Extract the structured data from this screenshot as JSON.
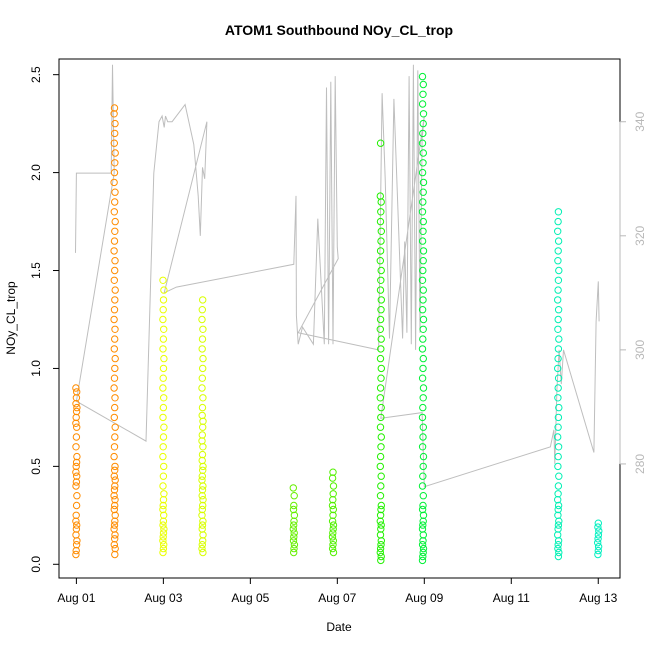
{
  "chart_data": {
    "type": "scatter",
    "title": "ATOM1 Southbound NOy_CL_trop",
    "xlabel": "Date",
    "ylabel": "NOy_CL_trop",
    "x_ticks": [
      "Aug 01",
      "Aug 03",
      "Aug 05",
      "Aug 07",
      "Aug 09",
      "Aug 11",
      "Aug 13"
    ],
    "x_tick_days": [
      1,
      3,
      5,
      7,
      9,
      11,
      13
    ],
    "xlim_days": [
      0.6,
      13.5
    ],
    "ylim": [
      -0.07,
      2.58
    ],
    "y_ticks": [
      "0.0",
      "0.5",
      "1.0",
      "1.5",
      "2.0",
      "2.5"
    ],
    "y_tick_values": [
      0,
      0.5,
      1.0,
      1.5,
      2.0,
      2.5
    ],
    "y2_ticks": [
      "280",
      "300",
      "320",
      "340"
    ],
    "y2_tick_values": [
      280,
      300,
      320,
      340
    ],
    "y2lim": [
      260,
      351
    ],
    "grid": false,
    "marker": "open circle",
    "colors": {
      "axis": "#000000",
      "right_axis": "#b8b8b8",
      "overlay_line": "#bebebe"
    },
    "series": [
      {
        "day": 1.0,
        "color": "#ff8c00",
        "values": [
          0.05,
          0.07,
          0.1,
          0.12,
          0.15,
          0.18,
          0.2,
          0.22,
          0.25,
          0.3,
          0.35,
          0.4,
          0.42,
          0.45,
          0.47,
          0.5,
          0.52,
          0.55,
          0.6,
          0.65,
          0.7,
          0.72,
          0.75,
          0.78,
          0.8,
          0.82,
          0.85,
          0.88,
          0.9
        ]
      },
      {
        "day": 1.88,
        "color": "#ff8c00",
        "values": [
          0.05,
          0.08,
          0.1,
          0.13,
          0.15,
          0.18,
          0.2,
          0.22,
          0.25,
          0.28,
          0.3,
          0.33,
          0.35,
          0.38,
          0.4,
          0.43,
          0.45,
          0.48,
          0.5,
          0.55,
          0.6,
          0.65,
          0.7,
          0.75,
          0.8,
          0.85,
          0.9,
          0.95,
          1.0,
          1.05,
          1.1,
          1.15,
          1.2,
          1.25,
          1.3,
          1.35,
          1.4,
          1.45,
          1.5,
          1.55,
          1.6,
          1.65,
          1.7,
          1.75,
          1.8,
          1.85,
          1.9,
          1.95,
          2.0,
          2.05,
          2.1,
          2.15,
          2.2,
          2.25,
          2.3,
          2.33
        ]
      },
      {
        "day": 3.0,
        "color": "#e9ff00",
        "values": [
          0.06,
          0.08,
          0.1,
          0.12,
          0.14,
          0.16,
          0.18,
          0.2,
          0.22,
          0.25,
          0.28,
          0.3,
          0.33,
          0.36,
          0.4,
          0.45,
          0.5,
          0.55,
          0.6,
          0.65,
          0.7,
          0.75,
          0.8,
          0.85,
          0.9,
          0.95,
          1.0,
          1.05,
          1.1,
          1.15,
          1.2,
          1.25,
          1.3,
          1.35,
          1.4,
          1.45
        ]
      },
      {
        "day": 3.9,
        "color": "#d8ff00",
        "values": [
          0.06,
          0.08,
          0.1,
          0.12,
          0.15,
          0.18,
          0.2,
          0.22,
          0.25,
          0.28,
          0.3,
          0.33,
          0.35,
          0.38,
          0.4,
          0.43,
          0.45,
          0.48,
          0.5,
          0.53,
          0.56,
          0.6,
          0.63,
          0.66,
          0.7,
          0.73,
          0.76,
          0.8,
          0.85,
          0.9,
          0.95,
          1.0,
          1.05,
          1.1,
          1.15,
          1.2,
          1.25,
          1.3,
          1.35
        ]
      },
      {
        "day": 6.0,
        "color": "#66f000",
        "values": [
          0.06,
          0.08,
          0.1,
          0.12,
          0.14,
          0.16,
          0.18,
          0.2,
          0.22,
          0.25,
          0.28,
          0.3,
          0.35,
          0.39
        ]
      },
      {
        "day": 6.9,
        "color": "#52f000",
        "values": [
          0.06,
          0.08,
          0.1,
          0.12,
          0.14,
          0.16,
          0.18,
          0.2,
          0.22,
          0.25,
          0.28,
          0.3,
          0.33,
          0.36,
          0.4,
          0.44,
          0.47
        ]
      },
      {
        "day": 8.0,
        "color": "#22f000",
        "values": [
          0.02,
          0.04,
          0.06,
          0.08,
          0.1,
          0.12,
          0.15,
          0.18,
          0.2,
          0.22,
          0.25,
          0.28,
          0.3,
          0.35,
          0.4,
          0.45,
          0.5,
          0.55,
          0.6,
          0.65,
          0.7,
          0.75,
          0.8,
          0.85,
          0.9,
          0.95,
          1.0,
          1.05,
          1.1,
          1.15,
          1.2,
          1.25,
          1.3,
          1.35,
          1.4,
          1.45,
          1.5,
          1.55,
          1.6,
          1.65,
          1.7,
          1.75,
          1.8,
          1.85,
          1.88,
          2.15
        ]
      },
      {
        "day": 8.97,
        "color": "#00f036",
        "values": [
          0.02,
          0.04,
          0.06,
          0.08,
          0.1,
          0.12,
          0.15,
          0.18,
          0.2,
          0.22,
          0.25,
          0.28,
          0.3,
          0.35,
          0.4,
          0.45,
          0.5,
          0.55,
          0.6,
          0.65,
          0.7,
          0.75,
          0.8,
          0.85,
          0.9,
          0.95,
          1.0,
          1.05,
          1.1,
          1.15,
          1.2,
          1.25,
          1.3,
          1.35,
          1.4,
          1.45,
          1.5,
          1.55,
          1.6,
          1.65,
          1.7,
          1.75,
          1.8,
          1.85,
          1.9,
          1.95,
          2.0,
          2.05,
          2.1,
          2.15,
          2.2,
          2.25,
          2.3,
          2.35,
          2.4,
          2.45,
          2.49
        ]
      },
      {
        "day": 12.08,
        "color": "#00f0b4",
        "values": [
          0.04,
          0.06,
          0.08,
          0.1,
          0.12,
          0.15,
          0.18,
          0.2,
          0.22,
          0.25,
          0.28,
          0.3,
          0.33,
          0.36,
          0.4,
          0.45,
          0.5,
          0.55,
          0.6,
          0.65,
          0.7,
          0.75,
          0.8,
          0.85,
          0.9,
          0.95,
          1.0,
          1.05,
          1.1,
          1.15,
          1.2,
          1.25,
          1.3,
          1.35,
          1.4,
          1.45,
          1.5,
          1.55,
          1.6,
          1.65,
          1.7,
          1.75,
          1.8
        ]
      },
      {
        "day": 13.0,
        "color": "#00f0c0",
        "values": [
          0.05,
          0.07,
          0.09,
          0.11,
          0.13,
          0.15,
          0.17,
          0.19,
          0.21
        ]
      }
    ],
    "overlay_line": {
      "axis": "right",
      "points": [
        [
          0.98,
          317
        ],
        [
          1.0,
          331
        ],
        [
          1.02,
          331
        ],
        [
          1.8,
          331
        ],
        [
          1.83,
          350
        ],
        [
          1.87,
          331
        ],
        [
          1.0,
          291
        ],
        [
          2.6,
          284
        ],
        [
          2.78,
          331
        ],
        [
          2.9,
          340
        ],
        [
          2.97,
          341
        ],
        [
          3.02,
          339
        ],
        [
          3.05,
          341
        ],
        [
          3.1,
          340
        ],
        [
          3.2,
          340
        ],
        [
          3.5,
          343
        ],
        [
          3.7,
          336
        ],
        [
          3.8,
          327
        ],
        [
          3.85,
          320
        ],
        [
          3.9,
          332
        ],
        [
          3.95,
          330
        ],
        [
          4.0,
          340
        ],
        [
          3.02,
          310
        ],
        [
          3.3,
          311
        ],
        [
          6.0,
          315
        ],
        [
          6.05,
          327
        ],
        [
          6.06,
          306
        ],
        [
          6.1,
          301
        ],
        [
          6.2,
          304
        ],
        [
          6.45,
          301
        ],
        [
          6.55,
          323
        ],
        [
          6.7,
          301
        ],
        [
          6.75,
          346
        ],
        [
          6.8,
          301
        ],
        [
          6.85,
          347
        ],
        [
          6.9,
          301
        ],
        [
          6.95,
          348
        ],
        [
          7.0,
          318
        ],
        [
          7.02,
          316
        ],
        [
          6.1,
          303
        ],
        [
          7.95,
          300
        ],
        [
          8.03,
          345
        ],
        [
          8.1,
          330
        ],
        [
          8.2,
          302
        ],
        [
          8.3,
          344
        ],
        [
          8.5,
          302
        ],
        [
          8.55,
          319
        ],
        [
          8.6,
          303
        ],
        [
          8.65,
          348
        ],
        [
          8.7,
          301
        ],
        [
          8.75,
          350
        ],
        [
          8.8,
          300
        ],
        [
          8.85,
          349
        ],
        [
          8.9,
          303
        ],
        [
          8.95,
          337
        ],
        [
          9.0,
          341
        ],
        [
          8.0,
          288
        ],
        [
          8.95,
          289
        ],
        [
          9.0,
          276
        ],
        [
          11.9,
          283
        ],
        [
          11.98,
          286
        ],
        [
          12.0,
          280
        ],
        [
          12.05,
          293
        ],
        [
          12.1,
          300
        ],
        [
          12.15,
          294
        ],
        [
          12.2,
          300
        ],
        [
          12.9,
          282
        ],
        [
          12.95,
          305
        ],
        [
          13.0,
          312
        ],
        [
          13.02,
          305
        ]
      ]
    }
  }
}
